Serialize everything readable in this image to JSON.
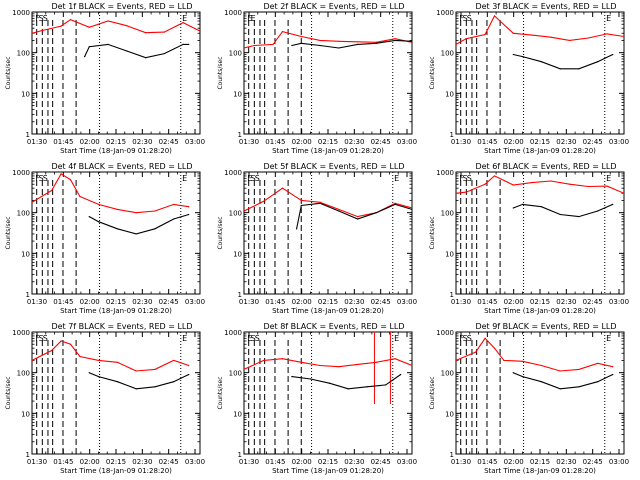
{
  "chart_data": [
    {
      "type": "line",
      "title": "Det 1f BLACK = Events, RED = LLD",
      "xlabel": "Start Time (18-Jan-09 01:28:20)",
      "ylabel": "Counts/sec",
      "xlim": [
        90,
        1880
      ],
      "ylim": [
        1,
        1000
      ],
      "yscale": "log",
      "grid": false,
      "xticks": [
        "01:30",
        "01:45",
        "02:00",
        "02:15",
        "02:30",
        "02:45",
        "03:00"
      ],
      "yticks": [
        "1",
        "10",
        "100",
        "1000"
      ],
      "markers": {
        "dashed_x": [
          140,
          200,
          260,
          310,
          420,
          560
        ],
        "dotted_x": [
          810,
          1675
        ],
        "solid_x": [],
        "labels": [
          "F",
          "S",
          "S",
          "E"
        ]
      },
      "series": [
        {
          "color": "#ff0000",
          "x": [
            90,
            200,
            400,
            500,
            700,
            900,
            1100,
            1300,
            1500,
            1700,
            1880
          ],
          "values": [
            300,
            350,
            450,
            650,
            420,
            600,
            460,
            310,
            320,
            550,
            340
          ]
        },
        {
          "color": "#000000",
          "x": [
            650,
            700,
            900,
            1100,
            1300,
            1500,
            1700,
            1760
          ],
          "values": [
            80,
            140,
            160,
            110,
            75,
            95,
            160,
            160
          ]
        }
      ]
    },
    {
      "type": "line",
      "title": "Det 2f BLACK = Events, RED = LLD",
      "xlabel": "Start Time (18-Jan-09 01:28:20)",
      "ylabel": "Counts/sec",
      "xlim": [
        90,
        1880
      ],
      "ylim": [
        1,
        1000
      ],
      "yscale": "log",
      "grid": false,
      "xticks": [
        "01:30",
        "01:45",
        "02:00",
        "02:15",
        "02:30",
        "02:45",
        "03:00"
      ],
      "yticks": [
        "1",
        "10",
        "100",
        "1000"
      ],
      "markers": {
        "dashed_x": [
          140,
          200,
          260,
          310,
          420,
          560,
          700
        ],
        "dotted_x": [
          810,
          1675
        ],
        "solid_x": [],
        "labels": [
          "E",
          "E"
        ]
      },
      "series": [
        {
          "color": "#ff0000",
          "x": [
            90,
            200,
            400,
            500,
            700,
            900,
            1100,
            1300,
            1500,
            1700,
            1880
          ],
          "values": [
            130,
            150,
            160,
            330,
            250,
            200,
            190,
            185,
            180,
            220,
            180
          ]
        },
        {
          "color": "#000000",
          "x": [
            600,
            700,
            900,
            1100,
            1300,
            1500,
            1700,
            1880
          ],
          "values": [
            150,
            170,
            150,
            130,
            160,
            170,
            200,
            190
          ]
        }
      ]
    },
    {
      "type": "line",
      "title": "Det 3f BLACK = Events, RED = LLD",
      "xlabel": "Start Time (18-Jan-09 01:28:20)",
      "ylabel": "Counts/sec",
      "xlim": [
        90,
        1880
      ],
      "ylim": [
        1,
        1000
      ],
      "yscale": "log",
      "grid": false,
      "xticks": [
        "01:30",
        "01:45",
        "02:00",
        "02:15",
        "02:30",
        "02:45",
        "03:00"
      ],
      "yticks": [
        "1",
        "10",
        "100",
        "1000"
      ],
      "markers": {
        "dashed_x": [
          140,
          200,
          260,
          310,
          420,
          560
        ],
        "dotted_x": [
          810,
          1675
        ],
        "solid_x": [],
        "labels": [
          "F",
          "S",
          "S",
          "E"
        ]
      },
      "series": [
        {
          "color": "#ff0000",
          "x": [
            90,
            200,
            400,
            500,
            700,
            900,
            1100,
            1300,
            1500,
            1700,
            1880
          ],
          "values": [
            160,
            220,
            280,
            800,
            300,
            270,
            240,
            200,
            230,
            290,
            250
          ]
        },
        {
          "color": "#000000",
          "x": [
            700,
            800,
            1000,
            1200,
            1400,
            1600,
            1760
          ],
          "values": [
            90,
            80,
            60,
            40,
            40,
            60,
            90
          ]
        }
      ]
    },
    {
      "type": "line",
      "title": "Det 4f BLACK = Events, RED = LLD",
      "xlabel": "Start Time (18-Jan-09 01:28:20)",
      "ylabel": "Counts/sec",
      "xlim": [
        90,
        1880
      ],
      "ylim": [
        1,
        1000
      ],
      "yscale": "log",
      "grid": false,
      "xticks": [
        "01:30",
        "01:45",
        "02:00",
        "02:15",
        "02:30",
        "02:45",
        "03:00"
      ],
      "yticks": [
        "1",
        "10",
        "100",
        "1000"
      ],
      "markers": {
        "dashed_x": [
          140,
          200,
          260,
          310,
          420,
          560
        ],
        "dotted_x": [
          810,
          1675
        ],
        "solid_x": [],
        "labels": [
          "F",
          "S",
          "S",
          "E"
        ]
      },
      "series": [
        {
          "color": "#ff0000",
          "x": [
            90,
            300,
            400,
            500,
            600,
            800,
            1000,
            1200,
            1400,
            1600,
            1760
          ],
          "values": [
            180,
            350,
            900,
            650,
            250,
            160,
            120,
            100,
            110,
            160,
            140
          ]
        },
        {
          "color": "#000000",
          "x": [
            700,
            800,
            1000,
            1200,
            1400,
            1600,
            1760
          ],
          "values": [
            80,
            60,
            40,
            30,
            40,
            70,
            90
          ]
        }
      ]
    },
    {
      "type": "line",
      "title": "Det 5f BLACK = Events, RED = LLD",
      "xlabel": "Start Time (18-Jan-09 01:28:20)",
      "ylabel": "Counts/sec",
      "xlim": [
        90,
        1880
      ],
      "ylim": [
        1,
        1000
      ],
      "yscale": "log",
      "grid": false,
      "xticks": [
        "01:30",
        "01:45",
        "02:00",
        "02:15",
        "02:30",
        "02:45",
        "03:00"
      ],
      "yticks": [
        "1",
        "10",
        "100",
        "1000"
      ],
      "markers": {
        "dashed_x": [
          140,
          200,
          260,
          310,
          420,
          560,
          700
        ],
        "dotted_x": [
          810,
          1675
        ],
        "solid_x": [],
        "labels": [
          "E",
          "S",
          "S",
          "E"
        ]
      },
      "series": [
        {
          "color": "#ff0000",
          "x": [
            90,
            300,
            500,
            700,
            900,
            1100,
            1300,
            1500,
            1700,
            1880
          ],
          "values": [
            110,
            190,
            400,
            200,
            180,
            120,
            80,
            100,
            170,
            130
          ]
        },
        {
          "color": "#000000",
          "x": [
            650,
            700,
            900,
            1100,
            1300,
            1500,
            1700,
            1880
          ],
          "values": [
            40,
            150,
            170,
            110,
            70,
            100,
            160,
            120
          ]
        }
      ]
    },
    {
      "type": "line",
      "title": "Det 6f BLACK = Events, RED = LLD",
      "xlabel": "Start Time (18-Jan-09 01:28:20)",
      "ylabel": "Counts/sec",
      "xlim": [
        90,
        1880
      ],
      "ylim": [
        1,
        1000
      ],
      "yscale": "log",
      "grid": false,
      "xticks": [
        "01:30",
        "01:45",
        "02:00",
        "02:15",
        "02:30",
        "02:45",
        "03:00"
      ],
      "yticks": [
        "1",
        "10",
        "100",
        "1000"
      ],
      "markers": {
        "dashed_x": [
          140,
          200,
          260,
          310,
          420,
          560
        ],
        "dotted_x": [
          810,
          1675
        ],
        "solid_x": [],
        "labels": [
          "F",
          "S",
          "S",
          "E"
        ]
      },
      "series": [
        {
          "color": "#ff0000",
          "x": [
            90,
            200,
            400,
            500,
            700,
            900,
            1100,
            1300,
            1500,
            1700,
            1880
          ],
          "values": [
            300,
            320,
            500,
            800,
            480,
            550,
            600,
            500,
            440,
            450,
            300
          ]
        },
        {
          "color": "#000000",
          "x": [
            700,
            800,
            1000,
            1200,
            1400,
            1600,
            1760
          ],
          "values": [
            130,
            160,
            140,
            90,
            80,
            110,
            160
          ]
        }
      ]
    },
    {
      "type": "line",
      "title": "Det 7f BLACK = Events, RED = LLD",
      "xlabel": "Start Time (18-Jan-09 01:28:20)",
      "ylabel": "Counts/sec",
      "xlim": [
        90,
        1880
      ],
      "ylim": [
        1,
        1000
      ],
      "yscale": "log",
      "grid": false,
      "xticks": [
        "01:30",
        "01:45",
        "02:00",
        "02:15",
        "02:30",
        "02:45",
        "03:00"
      ],
      "yticks": [
        "1",
        "10",
        "100",
        "1000"
      ],
      "markers": {
        "dashed_x": [
          140,
          200,
          260,
          310,
          420,
          560
        ],
        "dotted_x": [
          810,
          1675
        ],
        "solid_x": [],
        "labels": [
          "F",
          "S",
          "S",
          "E"
        ]
      },
      "series": [
        {
          "color": "#ff0000",
          "x": [
            90,
            300,
            400,
            500,
            600,
            800,
            1000,
            1200,
            1400,
            1600,
            1760
          ],
          "values": [
            200,
            350,
            600,
            500,
            250,
            200,
            180,
            110,
            120,
            200,
            150
          ]
        },
        {
          "color": "#000000",
          "x": [
            700,
            800,
            1000,
            1200,
            1400,
            1600,
            1760
          ],
          "values": [
            100,
            80,
            60,
            40,
            45,
            60,
            90
          ]
        }
      ]
    },
    {
      "type": "line",
      "title": "Det 8f BLACK = Events, RED = LLD",
      "xlabel": "Start Time (18-Jan-09 01:28:20)",
      "ylabel": "Counts/sec",
      "xlim": [
        90,
        1880
      ],
      "ylim": [
        1,
        1000
      ],
      "yscale": "log",
      "grid": false,
      "xticks": [
        "01:30",
        "01:45",
        "02:00",
        "02:15",
        "02:30",
        "02:45",
        "03:00"
      ],
      "yticks": [
        "1",
        "10",
        "100",
        "1000"
      ],
      "markers": {
        "dashed_x": [
          140,
          200,
          260,
          310,
          420,
          560,
          700
        ],
        "dotted_x": [
          810,
          1675
        ],
        "solid_x": [
          1480,
          1650
        ],
        "labels": [
          "E",
          "S",
          "S",
          "E"
        ]
      },
      "series": [
        {
          "color": "#ff0000",
          "x": [
            90,
            300,
            500,
            700,
            900,
            1100,
            1300,
            1500,
            1700,
            1880
          ],
          "values": [
            120,
            200,
            220,
            180,
            150,
            140,
            160,
            180,
            220,
            150
          ]
        },
        {
          "color": "#000000",
          "x": [
            600,
            800,
            1000,
            1200,
            1400,
            1600,
            1760
          ],
          "values": [
            80,
            70,
            55,
            40,
            45,
            50,
            90
          ]
        }
      ]
    },
    {
      "type": "line",
      "title": "Det 9f BLACK = Events, RED = LLD",
      "xlabel": "Start Time (18-Jan-09 01:28:20)",
      "ylabel": "Counts/sec",
      "xlim": [
        90,
        1880
      ],
      "ylim": [
        1,
        1000
      ],
      "yscale": "log",
      "grid": false,
      "xticks": [
        "01:30",
        "01:45",
        "02:00",
        "02:15",
        "02:30",
        "02:45",
        "03:00"
      ],
      "yticks": [
        "1",
        "10",
        "100",
        "1000"
      ],
      "markers": {
        "dashed_x": [
          140,
          200,
          260,
          310,
          420,
          560
        ],
        "dotted_x": [
          810,
          1675
        ],
        "solid_x": [],
        "labels": [
          "F",
          "S",
          "S",
          "E"
        ]
      },
      "series": [
        {
          "color": "#ff0000",
          "x": [
            90,
            300,
            400,
            500,
            600,
            800,
            1000,
            1200,
            1400,
            1600,
            1760
          ],
          "values": [
            200,
            320,
            700,
            400,
            200,
            190,
            150,
            110,
            120,
            170,
            140
          ]
        },
        {
          "color": "#000000",
          "x": [
            700,
            800,
            1000,
            1200,
            1400,
            1600,
            1760
          ],
          "values": [
            100,
            80,
            60,
            40,
            45,
            60,
            90
          ]
        }
      ]
    }
  ]
}
